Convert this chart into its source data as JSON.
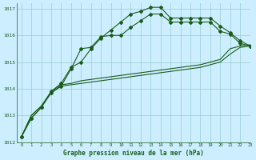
{
  "title": "Graphe pression niveau de la mer (hPa)",
  "bg_color": "#cceeff",
  "grid_color": "#99cccc",
  "line_color": "#1a5c1a",
  "xlim": [
    -0.5,
    23
  ],
  "ylim": [
    1012,
    1017.2
  ],
  "yticks": [
    1012,
    1013,
    1014,
    1015,
    1016,
    1017
  ],
  "xticks": [
    0,
    1,
    2,
    3,
    4,
    5,
    6,
    7,
    8,
    9,
    10,
    11,
    12,
    13,
    14,
    15,
    16,
    17,
    18,
    19,
    20,
    21,
    22,
    23
  ],
  "series": [
    {
      "y": [
        1012.2,
        1012.9,
        1013.3,
        1013.85,
        1014.1,
        1014.75,
        1015.5,
        1015.55,
        1015.95,
        1016.0,
        1016.0,
        1016.3,
        1016.55,
        1016.8,
        1016.8,
        1016.5,
        1016.5,
        1016.5,
        1016.5,
        1016.5,
        1016.15,
        1016.05,
        1015.7,
        1015.6
      ],
      "marker": true
    },
    {
      "y": [
        1012.2,
        1012.9,
        1013.3,
        1013.9,
        1014.2,
        1014.8,
        1015.0,
        1015.5,
        1015.9,
        1016.2,
        1016.5,
        1016.8,
        1016.9,
        1017.05,
        1017.05,
        1016.65,
        1016.65,
        1016.65,
        1016.65,
        1016.65,
        1016.35,
        1016.1,
        1015.8,
        1015.6
      ],
      "marker": true
    },
    {
      "y": [
        1012.2,
        1013.0,
        1013.35,
        1013.85,
        1014.1,
        1014.15,
        1014.2,
        1014.25,
        1014.3,
        1014.35,
        1014.4,
        1014.45,
        1014.5,
        1014.55,
        1014.6,
        1014.65,
        1014.7,
        1014.75,
        1014.8,
        1014.9,
        1015.0,
        1015.3,
        1015.55,
        1015.6
      ],
      "marker": false
    },
    {
      "y": [
        1012.2,
        1013.0,
        1013.35,
        1013.9,
        1014.15,
        1014.2,
        1014.3,
        1014.35,
        1014.4,
        1014.45,
        1014.5,
        1014.55,
        1014.6,
        1014.65,
        1014.7,
        1014.75,
        1014.8,
        1014.85,
        1014.9,
        1015.0,
        1015.1,
        1015.5,
        1015.6,
        1015.65
      ],
      "marker": false
    }
  ]
}
